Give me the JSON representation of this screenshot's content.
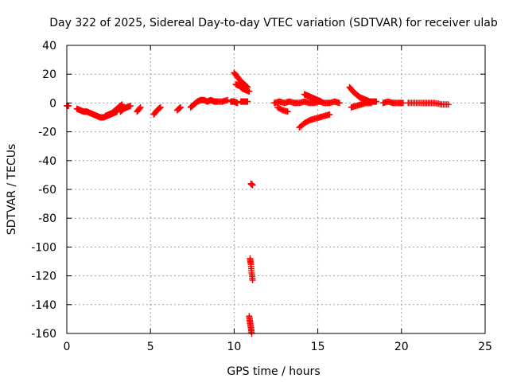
{
  "chart_data": {
    "type": "scatter",
    "title": "Day 322 of 2025, Sidereal Day-to-day VTEC variation (SDTVAR) for receiver ulab",
    "xlabel": "GPS time / hours",
    "ylabel": "SDTVAR / TECUs",
    "xlim": [
      0,
      25
    ],
    "ylim": [
      -160,
      40
    ],
    "xticks": [
      0,
      5,
      10,
      15,
      20,
      25
    ],
    "yticks": [
      40,
      20,
      0,
      -20,
      -40,
      -60,
      -80,
      -100,
      -120,
      -140,
      -160
    ],
    "grid": true,
    "legend": "none",
    "marker": "plus",
    "series_color": "#ff0000",
    "segments": [
      {
        "x": [
          0.0,
          0.1
        ],
        "y": [
          -2,
          -2
        ]
      },
      {
        "x": [
          0.6,
          0.8,
          1.0,
          1.2,
          1.4,
          1.6,
          1.8,
          2.0,
          2.2,
          2.4,
          2.6,
          2.8,
          3.0
        ],
        "y": [
          -4,
          -5,
          -6,
          -6,
          -7,
          -8,
          -9,
          -10,
          -10,
          -9,
          -8,
          -7,
          -6
        ]
      },
      {
        "x": [
          2.3,
          2.5,
          2.7,
          2.9,
          3.1,
          3.3
        ],
        "y": [
          -9,
          -8,
          -7,
          -5,
          -3,
          -1
        ]
      },
      {
        "x": [
          3.2,
          3.4,
          3.6,
          3.8
        ],
        "y": [
          -6,
          -4,
          -3,
          -2
        ]
      },
      {
        "x": [
          4.2,
          4.4
        ],
        "y": [
          -6,
          -3
        ]
      },
      {
        "x": [
          5.2,
          5.4,
          5.6
        ],
        "y": [
          -8,
          -5,
          -3
        ]
      },
      {
        "x": [
          6.6,
          6.8
        ],
        "y": [
          -5,
          -3
        ]
      },
      {
        "x": [
          7.4,
          7.6,
          7.8,
          8.0,
          8.2,
          8.4,
          8.6,
          8.8,
          9.0,
          9.3,
          9.6
        ],
        "y": [
          -3,
          -1,
          1,
          2,
          2,
          1,
          2,
          1,
          1,
          1,
          2
        ]
      },
      {
        "x": [
          9.8,
          10.0,
          10.2
        ],
        "y": [
          1,
          1,
          0
        ]
      },
      {
        "x": [
          10.0,
          10.2,
          10.4,
          10.6,
          10.8
        ],
        "y": [
          21,
          18,
          15,
          13,
          11
        ]
      },
      {
        "x": [
          10.1,
          10.3,
          10.5,
          10.7,
          10.9
        ],
        "y": [
          13,
          12,
          10,
          9,
          8
        ]
      },
      {
        "x": [
          10.4,
          10.6,
          10.8
        ],
        "y": [
          1,
          1,
          1
        ]
      },
      {
        "x": [
          11.0,
          11.1
        ],
        "y": [
          -56,
          -57
        ]
      },
      {
        "x": [
          10.95,
          11.0,
          11.05,
          11.1
        ],
        "y": [
          -108,
          -112,
          -118,
          -123
        ]
      },
      {
        "x": [
          10.9,
          10.95,
          11.0,
          11.05
        ],
        "y": [
          -148,
          -152,
          -156,
          -160
        ]
      },
      {
        "x": [
          12.4,
          12.7,
          13.0,
          13.3,
          13.6,
          13.9,
          14.2,
          14.5,
          14.8,
          15.1,
          15.4,
          15.7,
          16.0,
          16.3
        ],
        "y": [
          0,
          1,
          0,
          1,
          0,
          0,
          1,
          0,
          0,
          1,
          0,
          0,
          1,
          0
        ]
      },
      {
        "x": [
          12.6,
          12.9,
          13.2
        ],
        "y": [
          -3,
          -5,
          -6
        ]
      },
      {
        "x": [
          14.2,
          14.4,
          14.6,
          14.8,
          15.0,
          15.2
        ],
        "y": [
          6,
          5,
          4,
          3,
          2,
          1
        ]
      },
      {
        "x": [
          13.9,
          14.2,
          14.5,
          14.8,
          15.1,
          15.4,
          15.7
        ],
        "y": [
          -17,
          -14,
          -12,
          -11,
          -10,
          -9,
          -8
        ]
      },
      {
        "x": [
          16.9,
          17.1,
          17.3,
          17.5,
          17.7,
          17.9,
          18.1,
          18.3,
          18.5
        ],
        "y": [
          11,
          8,
          6,
          4,
          3,
          2,
          1,
          1,
          1
        ]
      },
      {
        "x": [
          17.0,
          17.3,
          17.6,
          17.9,
          18.2
        ],
        "y": [
          -3,
          -2,
          -1,
          0,
          0
        ]
      },
      {
        "x": [
          18.9,
          19.2,
          19.5,
          19.8,
          20.1
        ],
        "y": [
          0,
          1,
          0,
          0,
          0
        ]
      },
      {
        "x": [
          20.4,
          20.8,
          21.2,
          21.6,
          22.0,
          22.4,
          22.8
        ],
        "y": [
          0,
          0,
          0,
          0,
          0,
          -1,
          -1
        ]
      }
    ]
  }
}
